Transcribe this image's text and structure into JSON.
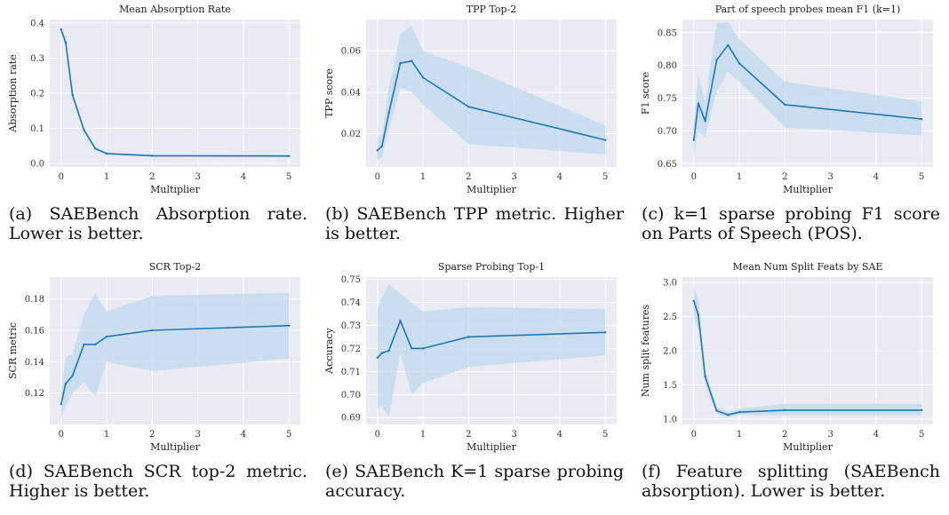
{
  "chart_data": [
    {
      "id": "a",
      "type": "line",
      "title": "Mean Absorption Rate",
      "xlabel": "Multiplier",
      "ylabel": "Absorption rate",
      "x": [
        0,
        0.1,
        0.25,
        0.5,
        0.75,
        1,
        2,
        5
      ],
      "y": [
        0.382,
        0.345,
        0.195,
        0.095,
        0.042,
        0.028,
        0.022,
        0.021
      ],
      "band_lower": [
        0.372,
        0.335,
        0.185,
        0.088,
        0.037,
        0.025,
        0.019,
        0.018
      ],
      "band_upper": [
        0.392,
        0.355,
        0.205,
        0.102,
        0.047,
        0.031,
        0.025,
        0.024
      ],
      "xlim": [
        -0.25,
        5.25
      ],
      "ylim": [
        -0.01,
        0.41
      ],
      "xticks": [
        0,
        1,
        2,
        3,
        4,
        5
      ],
      "yticks": [
        0.0,
        0.1,
        0.2,
        0.3,
        0.4
      ],
      "ytick_labels": [
        "0.0",
        "0.1",
        "0.2",
        "0.3",
        "0.4"
      ],
      "grid": true,
      "caption": "(a) SAEBench Absorption rate. Lower is better."
    },
    {
      "id": "b",
      "type": "line",
      "title": "TPP Top-2",
      "xlabel": "Multiplier",
      "ylabel": "TPP score",
      "x": [
        0,
        0.1,
        0.25,
        0.5,
        0.75,
        1,
        2,
        5
      ],
      "y": [
        0.012,
        0.014,
        0.03,
        0.054,
        0.055,
        0.047,
        0.033,
        0.017
      ],
      "band_lower": [
        0.007,
        0.009,
        0.022,
        0.042,
        0.04,
        0.034,
        0.015,
        0.01
      ],
      "band_upper": [
        0.018,
        0.02,
        0.042,
        0.068,
        0.072,
        0.06,
        0.052,
        0.024
      ],
      "xlim": [
        -0.25,
        5.25
      ],
      "ylim": [
        0.004,
        0.075
      ],
      "xticks": [
        0,
        1,
        2,
        3,
        4,
        5
      ],
      "yticks": [
        0.02,
        0.04,
        0.06
      ],
      "ytick_labels": [
        "0.02",
        "0.04",
        "0.06"
      ],
      "grid": true,
      "caption": "(b) SAEBench TPP metric. Higher is better."
    },
    {
      "id": "c",
      "type": "line",
      "title": "Part of speech probes mean F1 (k=1)",
      "xlabel": "Multiplier",
      "ylabel": "F1 score",
      "x": [
        0,
        0.1,
        0.25,
        0.5,
        0.75,
        1,
        2,
        5
      ],
      "y": [
        0.686,
        0.742,
        0.715,
        0.808,
        0.831,
        0.803,
        0.74,
        0.718
      ],
      "band_lower": [
        0.66,
        0.7,
        0.69,
        0.76,
        0.79,
        0.775,
        0.705,
        0.693
      ],
      "band_upper": [
        0.715,
        0.785,
        0.745,
        0.865,
        0.866,
        0.84,
        0.775,
        0.745
      ],
      "xlim": [
        -0.25,
        5.25
      ],
      "ylim": [
        0.645,
        0.87
      ],
      "xticks": [
        0,
        1,
        2,
        3,
        4,
        5
      ],
      "yticks": [
        0.65,
        0.7,
        0.75,
        0.8,
        0.85
      ],
      "ytick_labels": [
        "0.65",
        "0.70",
        "0.75",
        "0.80",
        "0.85"
      ],
      "grid": true,
      "caption": "(c) k=1 sparse probing F1 score on Parts of Speech (POS)."
    },
    {
      "id": "d",
      "type": "line",
      "title": "SCR Top-2",
      "xlabel": "Multiplier",
      "ylabel": "SCR metric",
      "x": [
        0,
        0.1,
        0.25,
        0.5,
        0.75,
        1,
        2,
        5
      ],
      "y": [
        0.113,
        0.126,
        0.131,
        0.151,
        0.151,
        0.156,
        0.16,
        0.163
      ],
      "band_lower": [
        0.104,
        0.112,
        0.12,
        0.127,
        0.118,
        0.14,
        0.134,
        0.142
      ],
      "band_upper": [
        0.12,
        0.143,
        0.145,
        0.17,
        0.184,
        0.172,
        0.182,
        0.184
      ],
      "xlim": [
        -0.25,
        5.25
      ],
      "ylim": [
        0.1,
        0.194
      ],
      "xticks": [
        0,
        1,
        2,
        3,
        4,
        5
      ],
      "yticks": [
        0.12,
        0.14,
        0.16,
        0.18
      ],
      "ytick_labels": [
        "0.12",
        "0.14",
        "0.16",
        "0.18"
      ],
      "grid": true,
      "caption": "(d) SAEBench SCR top-2 metric. Higher is better."
    },
    {
      "id": "e",
      "type": "line",
      "title": "Sparse Probing Top-1",
      "xlabel": "Multiplier",
      "ylabel": "Accuracy",
      "x": [
        0,
        0.1,
        0.25,
        0.5,
        0.75,
        1,
        2,
        5
      ],
      "y": [
        0.716,
        0.718,
        0.719,
        0.732,
        0.72,
        0.72,
        0.725,
        0.727
      ],
      "band_lower": [
        0.694,
        0.695,
        0.69,
        0.718,
        0.7,
        0.705,
        0.712,
        0.717
      ],
      "band_upper": [
        0.738,
        0.742,
        0.748,
        0.744,
        0.74,
        0.736,
        0.738,
        0.737
      ],
      "xlim": [
        -0.25,
        5.25
      ],
      "ylim": [
        0.687,
        0.751
      ],
      "xticks": [
        0,
        1,
        2,
        3,
        4,
        5
      ],
      "yticks": [
        0.69,
        0.7,
        0.71,
        0.72,
        0.73,
        0.74,
        0.75
      ],
      "ytick_labels": [
        "0.69",
        "0.70",
        "0.71",
        "0.72",
        "0.73",
        "0.74",
        "0.75"
      ],
      "grid": true,
      "caption": "(e) SAEBench K=1 sparse probing accuracy."
    },
    {
      "id": "f",
      "type": "line",
      "title": "Mean Num Split Feats by SAE",
      "xlabel": "Multiplier",
      "ylabel": "Num split features",
      "x": [
        0,
        0.1,
        0.25,
        0.5,
        0.75,
        1,
        2,
        5
      ],
      "y": [
        2.73,
        2.52,
        1.62,
        1.12,
        1.06,
        1.1,
        1.13,
        1.13
      ],
      "band_lower": [
        2.52,
        2.3,
        1.52,
        1.07,
        1.02,
        1.06,
        1.05,
        1.05
      ],
      "band_upper": [
        2.95,
        2.75,
        1.72,
        1.17,
        1.11,
        1.15,
        1.22,
        1.22
      ],
      "xlim": [
        -0.25,
        5.25
      ],
      "ylim": [
        0.92,
        3.08
      ],
      "xticks": [
        0,
        1,
        2,
        3,
        4,
        5
      ],
      "yticks": [
        1.0,
        1.5,
        2.0,
        2.5,
        3.0
      ],
      "ytick_labels": [
        "1.0",
        "1.5",
        "2.0",
        "2.5",
        "3.0"
      ],
      "grid": true,
      "caption": "(f) Feature splitting (SAEBench absorption). Lower is better."
    }
  ],
  "colors": {
    "line": "#1f77b4",
    "band": "#c5dcee",
    "plot_bg": "#eaeaf2",
    "grid": "#ffffff"
  }
}
